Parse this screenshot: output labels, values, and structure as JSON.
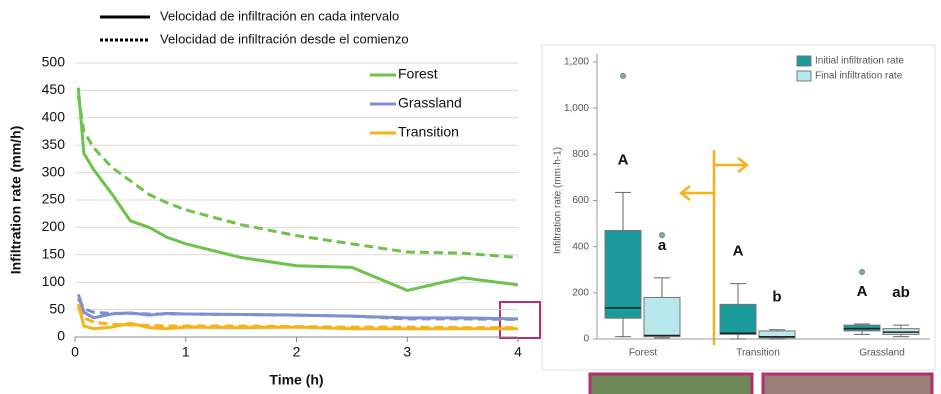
{
  "chart_data": [
    {
      "type": "line",
      "line_styles": [
        {
          "label": "Velocidad de infiltración en cada intervalo",
          "style": "solid"
        },
        {
          "label": "Velocidad de infiltración desde el comienzo",
          "style": "dotted"
        }
      ],
      "x_label": "Time (h)",
      "y_label": "Infiltration rate (mm/h)",
      "x": [
        0.03,
        0.08,
        0.17,
        0.33,
        0.5,
        0.67,
        0.83,
        1,
        1.5,
        2,
        2.5,
        3,
        3.5,
        4
      ],
      "series": [
        {
          "name": "Forest",
          "color": "#6cc24a",
          "values": [
            455,
            335,
            305,
            262,
            212,
            200,
            182,
            170,
            145,
            130,
            127,
            85,
            108,
            95
          ],
          "cumulative": [
            440,
            375,
            345,
            310,
            285,
            260,
            245,
            232,
            205,
            185,
            170,
            155,
            153,
            145
          ]
        },
        {
          "name": "Grassland",
          "color": "#7f8fcf",
          "values": [
            78,
            45,
            35,
            42,
            44,
            40,
            43,
            42,
            41,
            40,
            38,
            35,
            35,
            33
          ],
          "cumulative": [
            70,
            52,
            45,
            43,
            43,
            42,
            42,
            42,
            41,
            40,
            38,
            33,
            33,
            32
          ]
        },
        {
          "name": "Transition",
          "color": "#f5b21a",
          "values": [
            60,
            20,
            15,
            18,
            25,
            17,
            15,
            18,
            17,
            18,
            15,
            15,
            15,
            15
          ],
          "cumulative": [
            55,
            35,
            27,
            23,
            22,
            21,
            20,
            20,
            20,
            19,
            18,
            18,
            17,
            17
          ]
        }
      ],
      "xlim": [
        0,
        4
      ],
      "xticks": [
        0,
        1,
        2,
        3,
        4
      ],
      "ylim": [
        0,
        500
      ],
      "yticks": [
        0,
        50,
        100,
        150,
        200,
        250,
        300,
        350,
        400,
        450,
        500
      ],
      "grid": true
    },
    {
      "type": "box",
      "y_label": "Infiltration rate (mm·h-1)",
      "categories": [
        "Forest",
        "Transition",
        "Grassland"
      ],
      "series": [
        {
          "name": "Initial infiltration rate",
          "color": "#1a9a9a",
          "low": [
            10,
            0,
            20
          ],
          "q1": [
            90,
            20,
            35
          ],
          "median": [
            135,
            25,
            45
          ],
          "q3": [
            470,
            150,
            60
          ],
          "high": [
            635,
            240,
            65
          ],
          "outliers": [
            [
              1140
            ],
            [],
            [
              290
            ]
          ],
          "letters": [
            "A",
            "A",
            "A"
          ],
          "letter_colors": [
            "#111111",
            "#111111",
            "#111111"
          ]
        },
        {
          "name": "Final infiltration rate",
          "color": "#b8e8ec",
          "low": [
            5,
            0,
            10
          ],
          "q1": [
            10,
            5,
            20
          ],
          "median": [
            15,
            10,
            30
          ],
          "q3": [
            180,
            35,
            45
          ],
          "high": [
            265,
            40,
            60
          ],
          "outliers": [
            [
              450
            ],
            [],
            []
          ],
          "letters": [
            "a",
            "b",
            "ab"
          ],
          "letter_colors": [
            "#111111",
            "#1f6fc4",
            "#1f4f8f"
          ]
        }
      ],
      "ylim": [
        0,
        1200
      ],
      "yticks": [
        0,
        200,
        400,
        600,
        800,
        {
          "value": 1000,
          "label": "1,000"
        },
        {
          "value": 1200,
          "label": "1,200"
        }
      ]
    }
  ]
}
